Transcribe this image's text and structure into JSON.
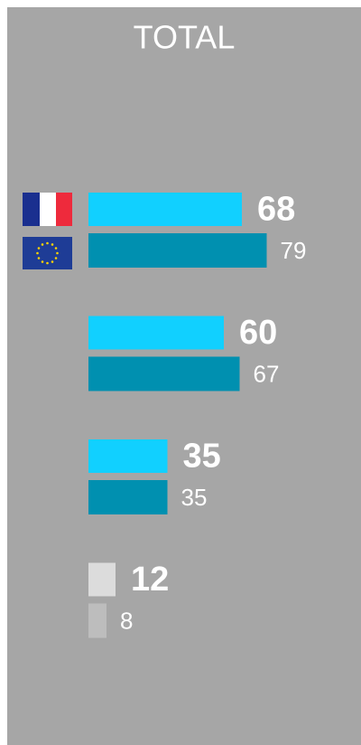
{
  "chart_data": {
    "type": "bar",
    "title": "TOTAL",
    "categories": [
      null,
      null,
      null,
      null
    ],
    "series": [
      {
        "colors": [
          "#11d0ff",
          "#11d0ff",
          "#11d0ff",
          "#dcdcdc"
        ],
        "values": [
          68,
          60,
          35,
          12
        ]
      },
      {
        "colors": [
          "#0090b0",
          "#0090b0",
          "#0090b0",
          "#bdbdbd"
        ],
        "values": [
          79,
          67,
          35,
          8
        ]
      }
    ]
  }
}
